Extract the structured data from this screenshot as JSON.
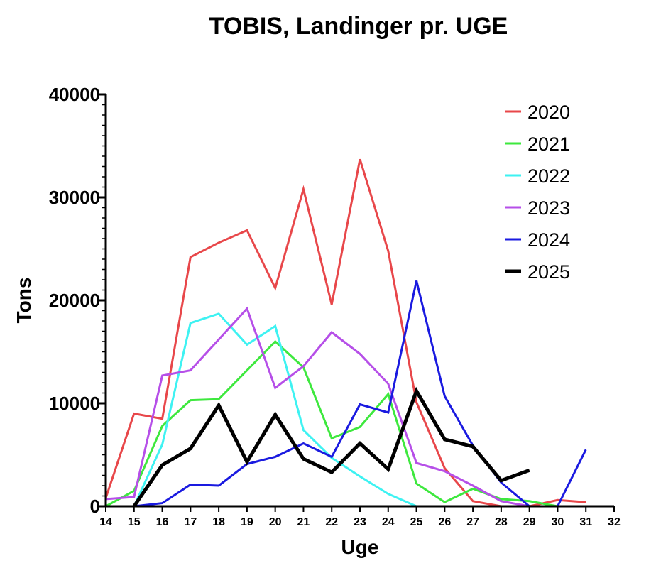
{
  "chart_data": {
    "type": "line",
    "title": "TOBIS, Landinger pr. UGE",
    "xlabel": "Uge",
    "ylabel": "Tons",
    "xlim": [
      14,
      32
    ],
    "ylim": [
      0,
      40000
    ],
    "x_ticks": [
      14,
      15,
      16,
      17,
      18,
      19,
      20,
      21,
      22,
      23,
      24,
      25,
      26,
      27,
      28,
      29,
      30,
      31,
      32
    ],
    "x_tick_labels": [
      "14",
      "15",
      "16",
      "17",
      "18",
      "19",
      "20",
      "21",
      "22",
      "23",
      "24",
      "25",
      "26",
      "27",
      "28",
      "29",
      "30",
      "31",
      "32"
    ],
    "y_ticks": [
      0,
      10000,
      20000,
      30000,
      40000
    ],
    "y_tick_labels": [
      "0",
      "10000",
      "20000",
      "30000",
      "40000"
    ],
    "grid": false,
    "legend_position": "top-right",
    "series": [
      {
        "name": "2020",
        "color": "#e8474a",
        "x": [
          14,
          15,
          16,
          17,
          18,
          19,
          20,
          21,
          22,
          23,
          24,
          25,
          26,
          27,
          28,
          29,
          30,
          31
        ],
        "values": [
          800,
          9000,
          8500,
          24200,
          25600,
          26800,
          21200,
          30800,
          19600,
          33700,
          24800,
          10100,
          3700,
          500,
          0,
          0,
          600,
          400
        ]
      },
      {
        "name": "2021",
        "color": "#3ee83e",
        "x": [
          14,
          15,
          16,
          17,
          18,
          19,
          20,
          21,
          22,
          23,
          24,
          25,
          26,
          27,
          28,
          29,
          30,
          31
        ],
        "values": [
          0,
          1500,
          7800,
          10300,
          10400,
          13200,
          16000,
          13500,
          6600,
          7700,
          10900,
          2200,
          400,
          1700,
          700,
          500,
          0,
          0
        ]
      },
      {
        "name": "2022",
        "color": "#3ef2f2",
        "x": [
          14,
          15,
          16,
          17,
          18,
          19,
          20,
          21,
          22,
          23,
          24,
          25
        ],
        "values": [
          0,
          0,
          6000,
          17800,
          18700,
          15700,
          17500,
          7400,
          4700,
          2900,
          1200,
          0
        ]
      },
      {
        "name": "2023",
        "color": "#b64fe8",
        "x": [
          14,
          15,
          16,
          17,
          18,
          19,
          20,
          21,
          22,
          23,
          24,
          25,
          26,
          27,
          28,
          29,
          30
        ],
        "values": [
          700,
          900,
          12700,
          13200,
          16200,
          19200,
          11500,
          13600,
          16900,
          14800,
          11900,
          4200,
          3400,
          2000,
          500,
          0,
          0
        ]
      },
      {
        "name": "2024",
        "color": "#1a1ae0",
        "x": [
          14,
          15,
          16,
          17,
          18,
          19,
          20,
          21,
          22,
          23,
          24,
          25,
          26,
          27,
          28,
          29,
          30,
          31
        ],
        "values": [
          0,
          0,
          300,
          2100,
          2000,
          4100,
          4800,
          6100,
          4800,
          9900,
          9100,
          21900,
          10700,
          5900,
          2300,
          0,
          0,
          5500
        ]
      },
      {
        "name": "2025",
        "color": "#000000",
        "x": [
          15,
          16,
          17,
          18,
          19,
          20,
          21,
          22,
          23,
          24,
          25,
          26,
          27,
          28,
          29
        ],
        "values": [
          0,
          4000,
          5600,
          9800,
          4300,
          8900,
          4600,
          3300,
          6100,
          3600,
          11200,
          6500,
          5800,
          2500,
          3500
        ]
      }
    ]
  }
}
